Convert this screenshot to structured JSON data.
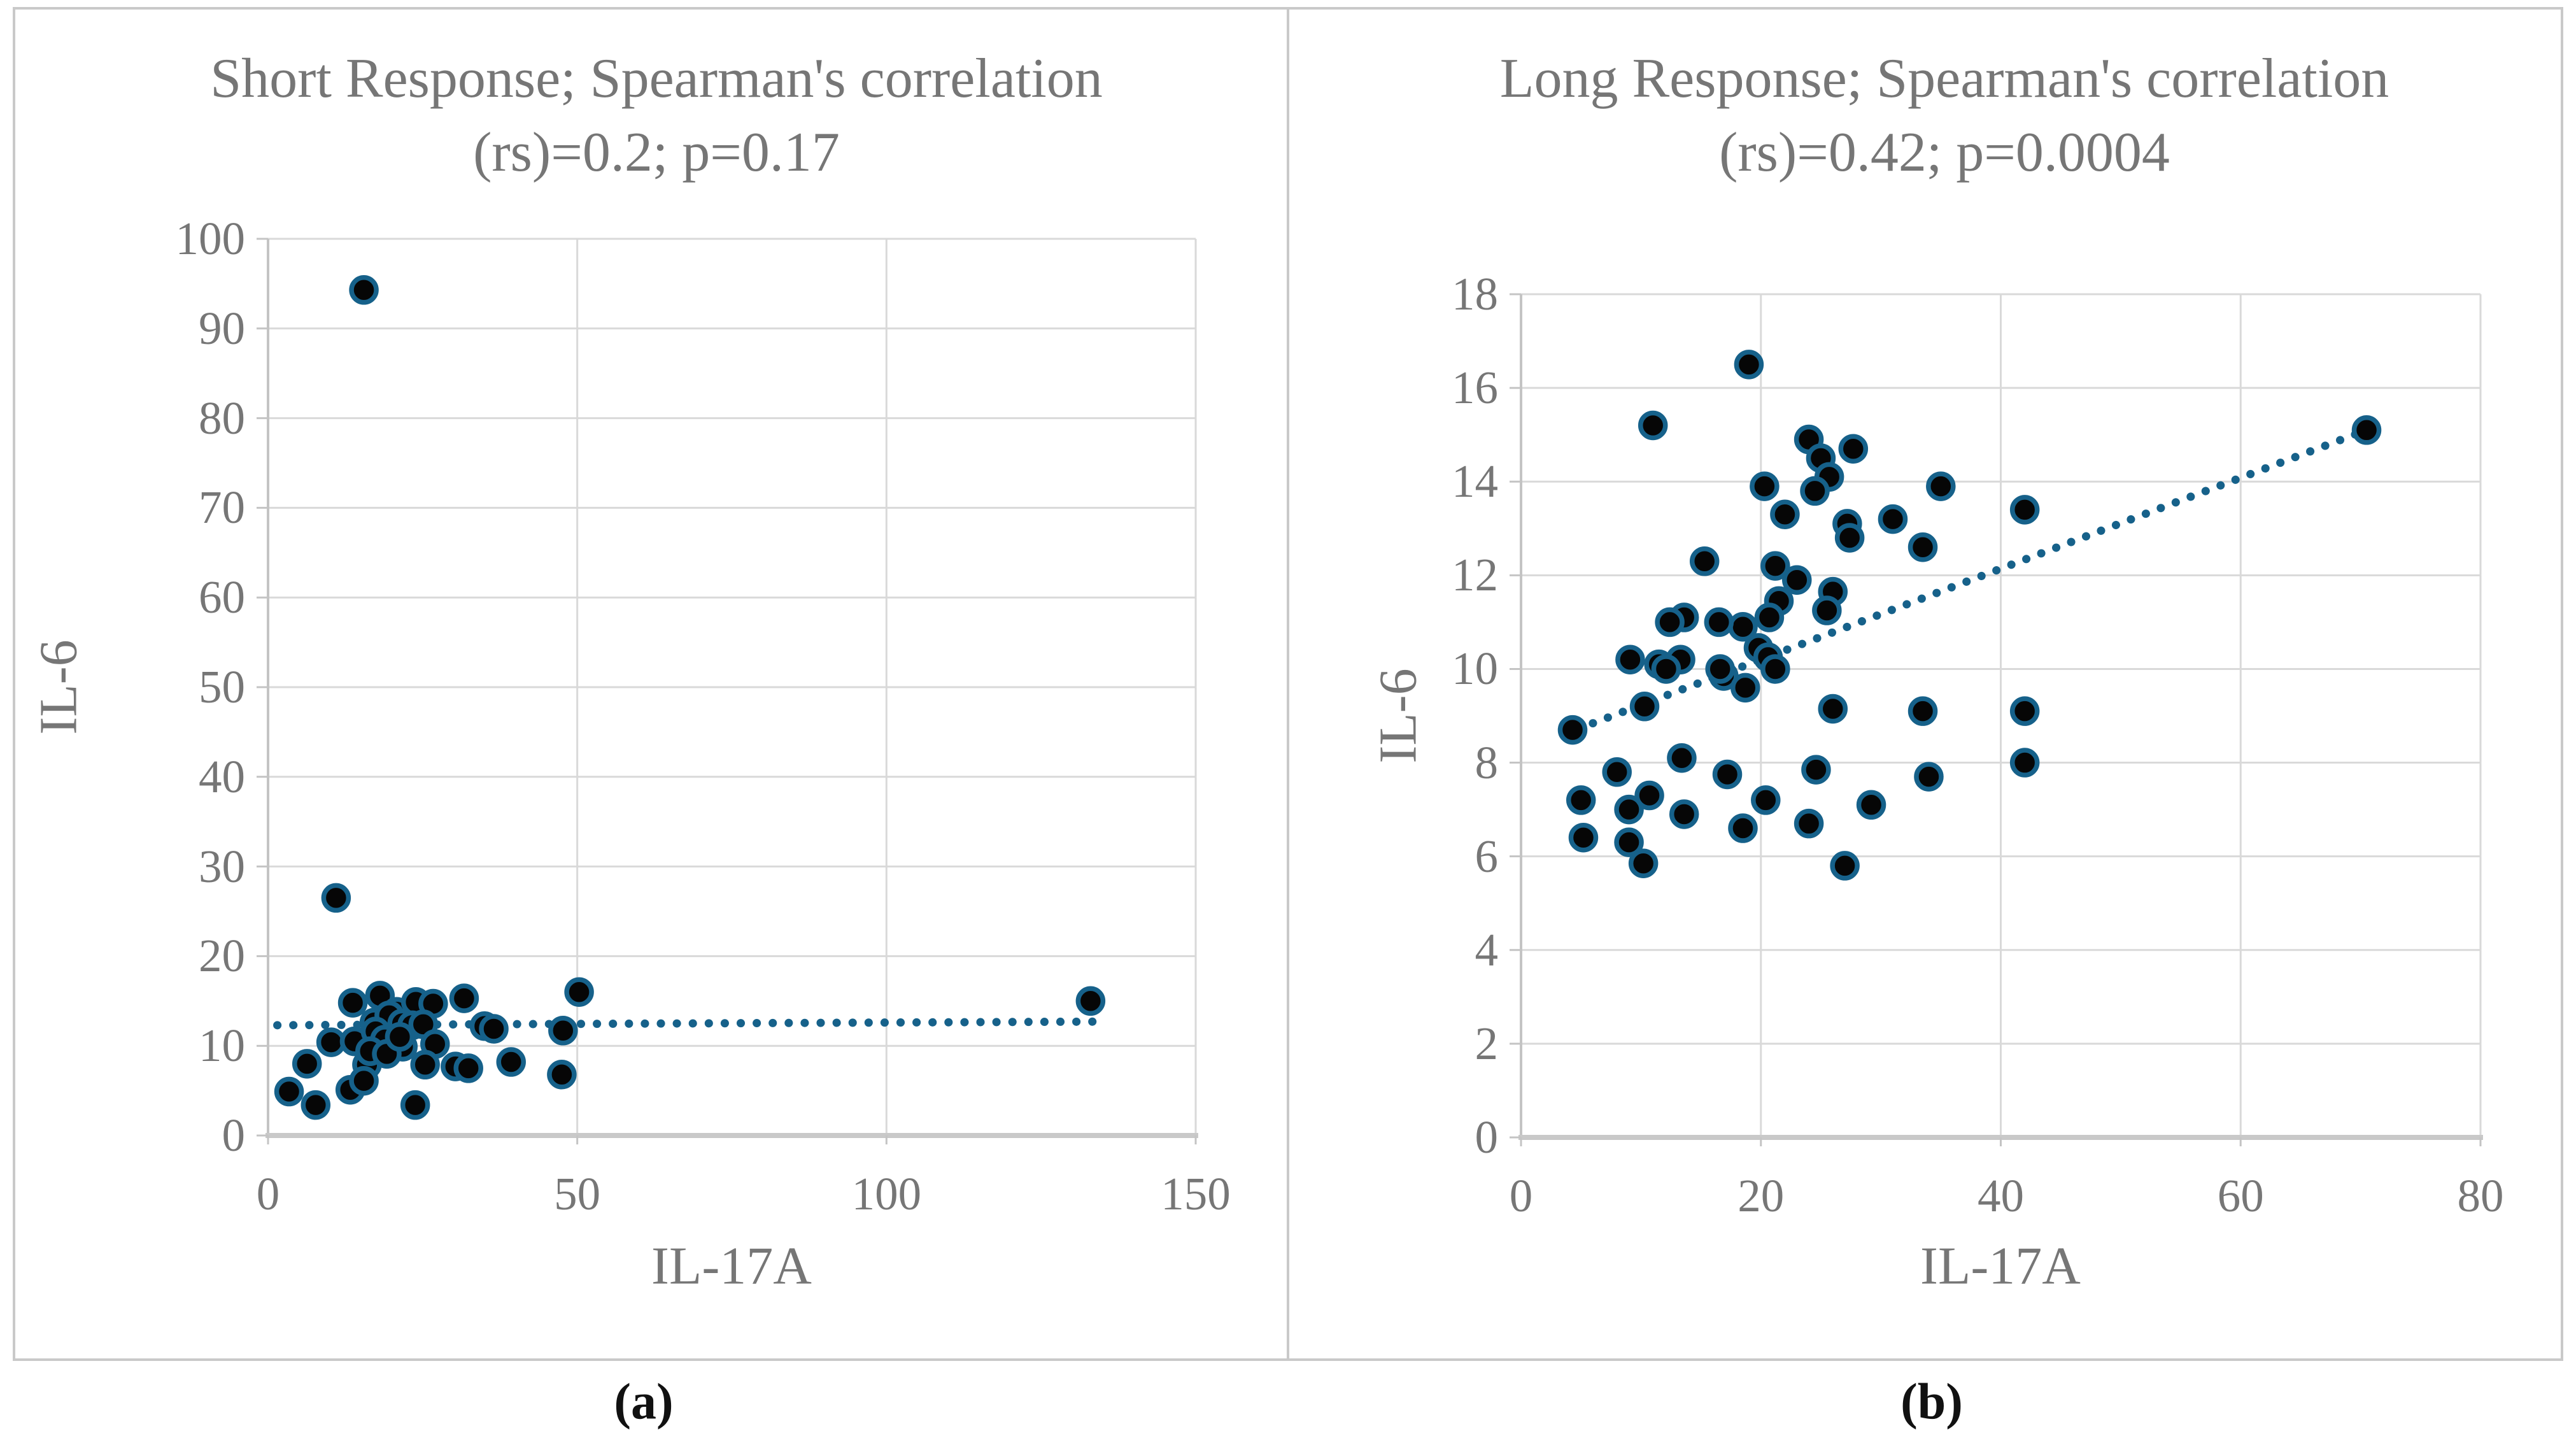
{
  "figure": {
    "caption_a": "(a)",
    "caption_b": "(b)"
  },
  "style": {
    "marker_fill": "#060606",
    "marker_stroke": "#16618a",
    "trend_color": "#16618a",
    "grid_color": "#d9d9d9",
    "axis_color": "#c4c4c4",
    "x_axis_color": "#c9c9c9",
    "text_color": "#767676",
    "border_color": "#c9c9c9"
  },
  "chart_data": [
    {
      "id": "a",
      "type": "scatter",
      "title_lines": [
        "Short Response; Spearman's correlation",
        "(rs)=0.2; p=0.17"
      ],
      "xlabel": "IL-17A",
      "ylabel": "IL-6",
      "xlim": [
        0,
        150
      ],
      "ylim": [
        0,
        100
      ],
      "xticks": [
        0,
        50,
        100,
        150
      ],
      "yticks": [
        0,
        10,
        20,
        30,
        40,
        50,
        60,
        70,
        80,
        90,
        100
      ],
      "grid": true,
      "legend": "none",
      "caption": "(a)",
      "trendline": {
        "style": "dotted",
        "x1": 1.5,
        "y1": 12.3,
        "x2": 134,
        "y2": 12.7
      },
      "points": [
        [
          15.5,
          94.3
        ],
        [
          11,
          26.5
        ],
        [
          133,
          15.0
        ],
        [
          50.3,
          16.0
        ],
        [
          13.7,
          14.8
        ],
        [
          18.1,
          15.6
        ],
        [
          20.8,
          13.8
        ],
        [
          23.9,
          14.9
        ],
        [
          26.7,
          14.7
        ],
        [
          31.7,
          15.3
        ],
        [
          10.2,
          10.4
        ],
        [
          14.0,
          10.5
        ],
        [
          17.8,
          11.3
        ],
        [
          17.2,
          12.6
        ],
        [
          19.6,
          13.4
        ],
        [
          21.7,
          12.5
        ],
        [
          23.3,
          12.3
        ],
        [
          25.1,
          12.4
        ],
        [
          21.8,
          9.9
        ],
        [
          27.0,
          10.2
        ],
        [
          35.0,
          12.2
        ],
        [
          36.5,
          11.9
        ],
        [
          47.7,
          11.7
        ],
        [
          6.3,
          8.0
        ],
        [
          16.0,
          7.9
        ],
        [
          25.4,
          7.9
        ],
        [
          30.3,
          7.7
        ],
        [
          32.4,
          7.5
        ],
        [
          39.3,
          8.2
        ],
        [
          47.5,
          6.8
        ],
        [
          3.4,
          4.9
        ],
        [
          7.7,
          3.4
        ],
        [
          13.3,
          5.1
        ],
        [
          15.5,
          6.1
        ],
        [
          23.8,
          3.4
        ],
        [
          17.4,
          11.6
        ],
        [
          18.9,
          10.7
        ],
        [
          16.5,
          9.4
        ],
        [
          19.2,
          9.1
        ],
        [
          21.3,
          11.0
        ]
      ]
    },
    {
      "id": "b",
      "type": "scatter",
      "title_lines": [
        "Long Response; Spearman's correlation",
        "(rs)=0.42; p=0.0004"
      ],
      "xlabel": "IL-17A",
      "ylabel": "IL-6",
      "xlim": [
        0,
        80
      ],
      "ylim": [
        0,
        18
      ],
      "xticks": [
        0,
        20,
        40,
        60,
        80
      ],
      "yticks": [
        0,
        2,
        4,
        6,
        8,
        10,
        12,
        14,
        16,
        18
      ],
      "grid": true,
      "legend": "none",
      "caption": "(b)",
      "trendline": {
        "style": "dotted",
        "x1": 3.5,
        "y1": 8.6,
        "x2": 70.5,
        "y2": 15.1
      },
      "points": [
        [
          19,
          16.5
        ],
        [
          11,
          15.2
        ],
        [
          70.5,
          15.1
        ],
        [
          24,
          14.9
        ],
        [
          25,
          14.5
        ],
        [
          27.7,
          14.7
        ],
        [
          25.7,
          14.1
        ],
        [
          20.3,
          13.9
        ],
        [
          24.5,
          13.8
        ],
        [
          22,
          13.3
        ],
        [
          27.2,
          13.1
        ],
        [
          27.4,
          12.8
        ],
        [
          31,
          13.2
        ],
        [
          35,
          13.9
        ],
        [
          42,
          13.4
        ],
        [
          33.5,
          12.6
        ],
        [
          15.3,
          12.3
        ],
        [
          21.2,
          12.2
        ],
        [
          23,
          11.9
        ],
        [
          21.5,
          11.45
        ],
        [
          20.7,
          11.1
        ],
        [
          18.5,
          10.9
        ],
        [
          16.5,
          11.0
        ],
        [
          13.6,
          11.1
        ],
        [
          12.4,
          11.0
        ],
        [
          26,
          11.65
        ],
        [
          25.5,
          11.25
        ],
        [
          9.1,
          10.2
        ],
        [
          11.5,
          10.1
        ],
        [
          13.3,
          10.2
        ],
        [
          12.1,
          10.0
        ],
        [
          16.9,
          9.85
        ],
        [
          18.7,
          9.6
        ],
        [
          19.8,
          10.45
        ],
        [
          20.6,
          10.25
        ],
        [
          21.2,
          10.0
        ],
        [
          16.6,
          10.0
        ],
        [
          10.3,
          9.2
        ],
        [
          4.3,
          8.7
        ],
        [
          26,
          9.15
        ],
        [
          33.5,
          9.1
        ],
        [
          42,
          9.1
        ],
        [
          13.4,
          8.1
        ],
        [
          8,
          7.8
        ],
        [
          17.2,
          7.75
        ],
        [
          24.6,
          7.85
        ],
        [
          34,
          7.7
        ],
        [
          42,
          8.0
        ],
        [
          5,
          7.2
        ],
        [
          9,
          7.0
        ],
        [
          10.7,
          7.3
        ],
        [
          13.6,
          6.9
        ],
        [
          20.4,
          7.2
        ],
        [
          18.5,
          6.6
        ],
        [
          24,
          6.7
        ],
        [
          29.2,
          7.1
        ],
        [
          5.2,
          6.4
        ],
        [
          9,
          6.3
        ],
        [
          10.2,
          5.85
        ],
        [
          27,
          5.8
        ]
      ]
    }
  ]
}
